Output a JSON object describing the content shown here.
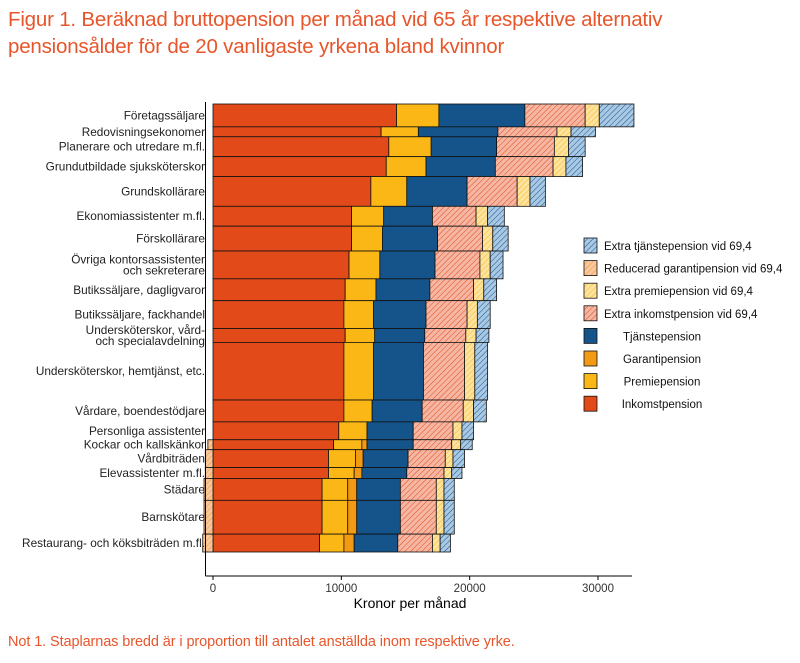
{
  "title": "Figur 1. Beräknad bruttopension per månad vid 65 år respektive alternativ pensionsålder för de 20 vanligaste yrkena bland kvinnor",
  "note": "Not 1. Staplarnas bredd är i proportion till antalet anställda inom respektive yrke.",
  "colors": {
    "inkomstpension": "#e24a1a",
    "premiepension": "#fbb715",
    "garantipension": "#f39a14",
    "tjanstepension": "#15548a",
    "extra_inkomst": "#f5b7a3",
    "extra_premie": "#fde3a0",
    "extra_garanti": "#f8c6a1",
    "extra_tjanste": "#a9c8e3"
  },
  "chart_data": {
    "type": "bar",
    "orientation": "horizontal",
    "stacked": true,
    "variable_width": true,
    "xlabel": "Kronor per månad",
    "xlim": [
      0,
      32000
    ],
    "xticks": [
      0,
      10000,
      20000,
      30000
    ],
    "legend_position": "right",
    "legend": [
      "Extra tjänstepension vid 69,4",
      "Reducerad garantipension vid 69,4",
      "Extra premiepension vid 69,4",
      "Extra inkomstpension vid 69,4",
      "Tjänstepension",
      "Garantipension",
      "Premiepension",
      "Inkomstpension"
    ],
    "categories": [
      "Företagssäljare",
      "Redovisningsekonomer",
      "Planerare och utredare m.fl.",
      "Grundutbildade sjuksköterskor",
      "Grundskollärare",
      "Ekonomiassistenter m.fl.",
      "Förskollärare",
      "Övriga kontorsassistenter och sekreterare",
      "Butikssäljare, dagligvaror",
      "Butikssäljare, fackhandel",
      "Undersköterskor, vård- och specialavdelning",
      "Undersköterskor, hemtjänst, etc.",
      "Vårdare, boendestödjare",
      "Personliga assistenter",
      "Kockar och kallskänkor",
      "Vårdbiträden",
      "Elevassistenter m.fl.",
      "Städare",
      "Barnskötare",
      "Restaurang- och köksbiträden m.fl."
    ],
    "bar_width_share": [
      2.3,
      1.0,
      2.0,
      2.0,
      3.0,
      2.0,
      2.5,
      2.8,
      2.2,
      2.8,
      1.4,
      5.8,
      2.2,
      1.8,
      1.0,
      1.8,
      1.1,
      2.2,
      3.4,
      1.8
    ],
    "series": [
      {
        "name": "Inkomstpension",
        "values": [
          14300,
          13100,
          13700,
          13500,
          12300,
          10800,
          10800,
          10600,
          10300,
          10200,
          10300,
          10200,
          10200,
          9800,
          9400,
          9000,
          9000,
          8500,
          8500,
          8300
        ]
      },
      {
        "name": "Premiepension",
        "values": [
          3300,
          2900,
          3300,
          3100,
          2800,
          2500,
          2400,
          2400,
          2400,
          2300,
          2300,
          2300,
          2200,
          2200,
          2200,
          2100,
          2000,
          2000,
          2000,
          1900
        ]
      },
      {
        "name": "Garantipension",
        "values": [
          0,
          0,
          0,
          0,
          0,
          0,
          0,
          0,
          0,
          0,
          0,
          0,
          0,
          0,
          400,
          600,
          600,
          700,
          700,
          800
        ]
      },
      {
        "name": "Tjänstepension",
        "values": [
          6700,
          6200,
          5100,
          5400,
          4700,
          3800,
          4300,
          4300,
          4200,
          4100,
          3900,
          3900,
          3900,
          3600,
          3600,
          3500,
          3500,
          3400,
          3400,
          3400
        ]
      },
      {
        "name": "Extra inkomstpension vid 69,4",
        "values": [
          4700,
          4600,
          4500,
          4500,
          3900,
          3400,
          3500,
          3500,
          3400,
          3200,
          3200,
          3200,
          3200,
          3100,
          3000,
          2900,
          2900,
          2800,
          2800,
          2700
        ]
      },
      {
        "name": "Reducerad garantipension vid 69,4",
        "values": [
          0,
          0,
          0,
          0,
          0,
          0,
          0,
          0,
          0,
          0,
          0,
          0,
          0,
          0,
          -400,
          -600,
          -600,
          -700,
          -700,
          -800
        ]
      },
      {
        "name": "Extra premiepension vid 69,4",
        "values": [
          1100,
          1100,
          1100,
          1000,
          1000,
          900,
          800,
          800,
          800,
          800,
          800,
          800,
          800,
          700,
          700,
          600,
          600,
          600,
          600,
          600
        ]
      },
      {
        "name": "Extra tjänstepension vid 69,4",
        "values": [
          2700,
          1900,
          1300,
          1300,
          1200,
          1300,
          1200,
          1000,
          1000,
          1000,
          1000,
          1000,
          1000,
          900,
          900,
          900,
          800,
          800,
          800,
          800
        ]
      }
    ]
  }
}
